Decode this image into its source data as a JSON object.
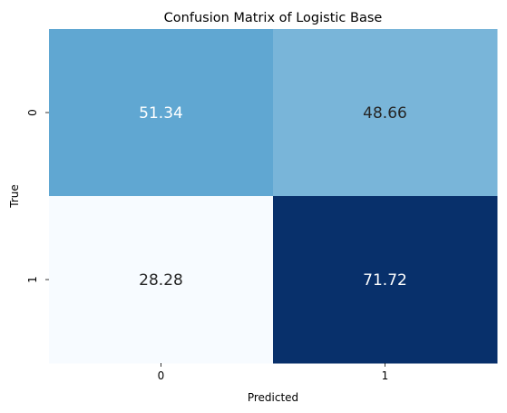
{
  "chart_data": {
    "type": "heatmap",
    "title": "Confusion Matrix of Logistic Base",
    "xlabel": "Predicted",
    "ylabel": "True",
    "x_categories": [
      "0",
      "1"
    ],
    "y_categories": [
      "0",
      "1"
    ],
    "values": [
      [
        51.34,
        48.66
      ],
      [
        28.28,
        71.72
      ]
    ],
    "cell_labels": [
      [
        "51.34",
        "48.66"
      ],
      [
        "28.28",
        "71.72"
      ]
    ],
    "colormap": "Blues",
    "colors": [
      [
        "#60a7d2",
        "#79b5d9"
      ],
      [
        "#f7fbff",
        "#08306b"
      ]
    ],
    "annotation_colors": [
      [
        "#ffffff",
        "#262626"
      ],
      [
        "#262626",
        "#ffffff"
      ]
    ],
    "colorbar": false,
    "grid": false
  }
}
